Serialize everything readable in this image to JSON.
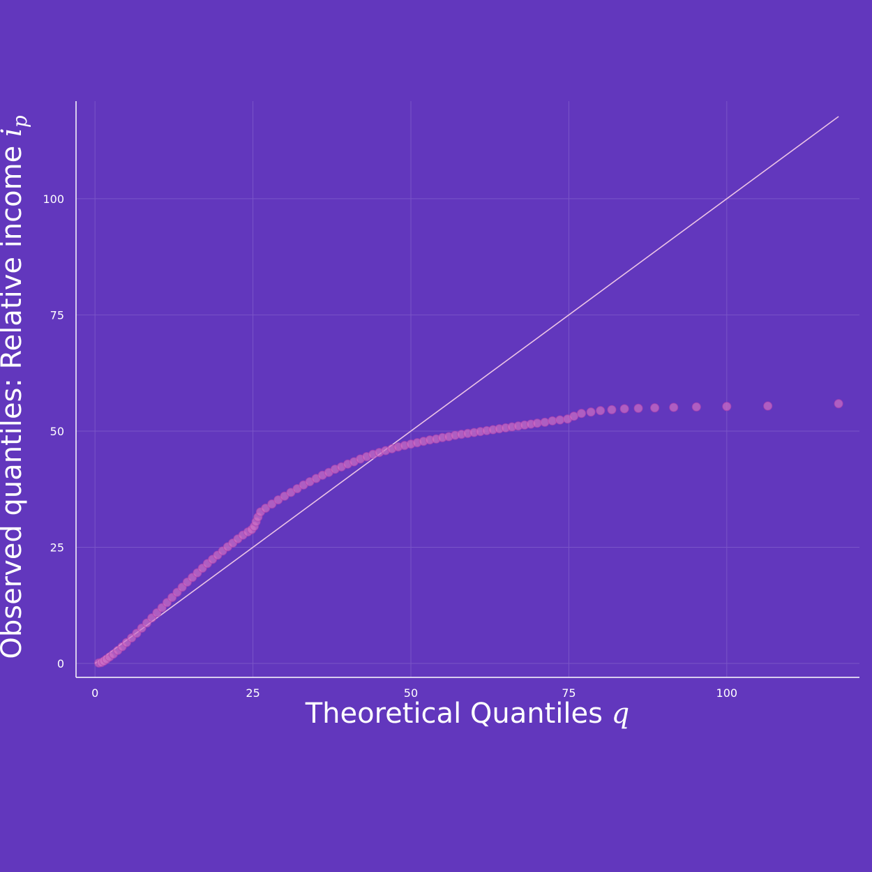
{
  "colors": {
    "background": "#6237bd",
    "grid": "#7a55c8",
    "axis": "#ffffff",
    "reference_line": "#ecc4e6",
    "marker_fill": "#cf6fc4",
    "marker_stroke": "#b03fae"
  },
  "chart_data": {
    "type": "scatter",
    "xlabel": "Theoretical Quantiles",
    "xlabel_symbol": "q",
    "ylabel": "Observed quantiles: Relative income",
    "ylabel_symbol": "i",
    "ylabel_subscript": "p",
    "xlim": [
      -3,
      121
    ],
    "ylim": [
      -3,
      121
    ],
    "xticks": [
      0,
      25,
      50,
      75,
      100
    ],
    "yticks": [
      0,
      25,
      50,
      75,
      100
    ],
    "xtick_labels": [
      "0",
      "25",
      "50",
      "75",
      "100"
    ],
    "ytick_labels": [
      "0",
      "25",
      "50",
      "75",
      "100"
    ],
    "grid": true,
    "legend": "none",
    "reference_line": {
      "x": [
        0,
        117.7
      ],
      "y": [
        0,
        117.7
      ]
    },
    "series": [
      {
        "x": [
          0.6,
          1.0,
          1.4,
          1.8,
          2.3,
          2.9,
          3.6,
          4.3,
          5.0,
          5.8,
          6.6,
          7.4,
          8.2,
          9.0,
          9.8,
          10.6,
          11.4,
          12.2,
          13.0,
          13.8,
          14.6,
          15.4,
          16.2,
          17.0,
          17.8,
          18.6,
          19.4,
          20.2,
          21.0,
          21.8,
          22.6,
          23.4,
          24.2,
          24.8,
          25.2,
          25.5,
          25.8,
          26.2,
          27.0,
          28.0,
          29.0,
          30.0,
          31.0,
          32.0,
          33.0,
          34.0,
          35.0,
          36.0,
          37.0,
          38.0,
          39.0,
          40.0,
          41.0,
          42.0,
          43.0,
          44.0,
          45.0,
          46.0,
          47.0,
          48.0,
          49.0,
          50.0,
          51.0,
          52.0,
          53.0,
          54.0,
          55.0,
          56.0,
          57.0,
          58.0,
          59.0,
          60.0,
          61.0,
          62.0,
          63.0,
          64.0,
          65.0,
          66.0,
          67.0,
          68.0,
          69.0,
          70.0,
          71.2,
          72.4,
          73.6,
          74.8,
          75.8,
          77.0,
          78.5,
          80.0,
          81.8,
          83.8,
          86.0,
          88.6,
          91.6,
          95.2,
          100.0,
          106.5,
          117.7
        ],
        "y": [
          0.1,
          0.2,
          0.5,
          0.9,
          1.4,
          2.0,
          2.8,
          3.6,
          4.5,
          5.5,
          6.5,
          7.6,
          8.7,
          9.8,
          10.9,
          12.0,
          13.1,
          14.2,
          15.3,
          16.4,
          17.5,
          18.5,
          19.5,
          20.5,
          21.5,
          22.4,
          23.3,
          24.2,
          25.1,
          25.9,
          26.8,
          27.6,
          28.3,
          28.8,
          29.5,
          30.5,
          31.5,
          32.6,
          33.4,
          34.3,
          35.2,
          36.0,
          36.8,
          37.6,
          38.4,
          39.1,
          39.8,
          40.5,
          41.1,
          41.8,
          42.3,
          42.9,
          43.4,
          44.0,
          44.5,
          45.0,
          45.4,
          45.8,
          46.2,
          46.6,
          46.9,
          47.2,
          47.5,
          47.8,
          48.1,
          48.3,
          48.6,
          48.8,
          49.1,
          49.3,
          49.5,
          49.7,
          49.9,
          50.1,
          50.3,
          50.5,
          50.7,
          50.9,
          51.1,
          51.3,
          51.5,
          51.7,
          51.9,
          52.2,
          52.4,
          52.6,
          53.2,
          53.8,
          54.1,
          54.4,
          54.6,
          54.8,
          54.9,
          55.0,
          55.1,
          55.2,
          55.3,
          55.4,
          55.9
        ]
      }
    ]
  }
}
